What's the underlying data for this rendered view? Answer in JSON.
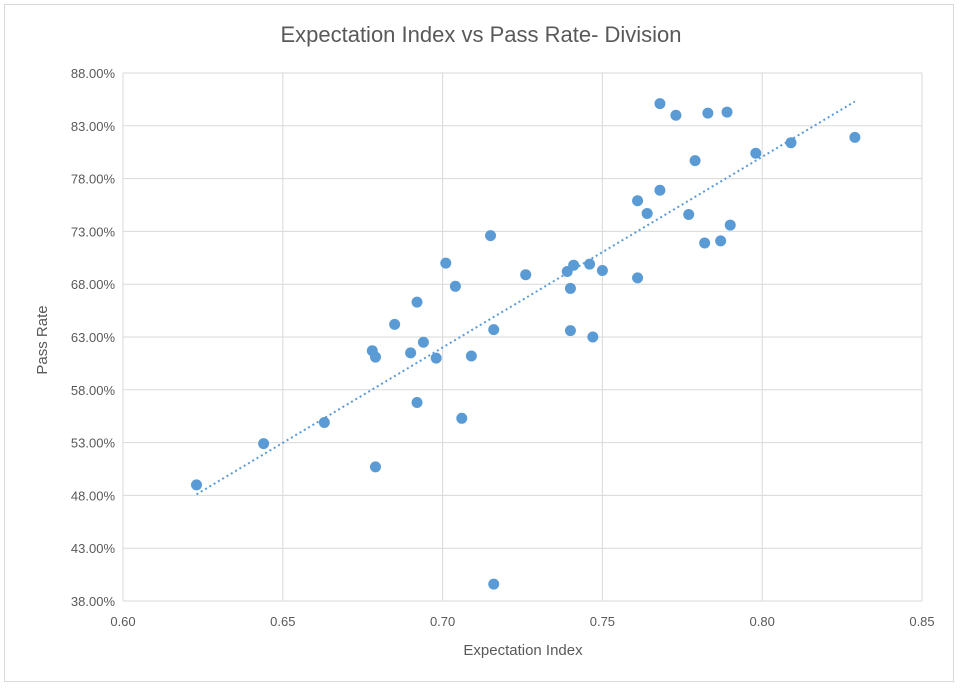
{
  "chart_data": {
    "type": "scatter",
    "title": "Expectation Index vs Pass Rate- Division",
    "xlabel": "Expectation Index",
    "ylabel": "Pass Rate",
    "xlim": [
      0.6,
      0.85
    ],
    "ylim": [
      38,
      88
    ],
    "x_ticks": [
      0.6,
      0.65,
      0.7,
      0.75,
      0.8,
      0.85
    ],
    "x_tick_labels": [
      "0.60",
      "0.65",
      "0.70",
      "0.75",
      "0.80",
      "0.85"
    ],
    "y_ticks": [
      38,
      43,
      48,
      53,
      58,
      63,
      68,
      73,
      78,
      83,
      88
    ],
    "y_tick_labels": [
      "38.00%",
      "43.00%",
      "48.00%",
      "53.00%",
      "58.00%",
      "63.00%",
      "68.00%",
      "73.00%",
      "78.00%",
      "83.00%",
      "88.00%"
    ],
    "grid": true,
    "point_color": "#5b9bd5",
    "trendline": {
      "type": "linear",
      "x": [
        0.623,
        0.829
      ],
      "y": [
        48.1,
        85.3
      ],
      "style": "dotted",
      "color": "#5b9bd5"
    },
    "series": [
      {
        "name": "Division",
        "points": [
          [
            0.623,
            49.0
          ],
          [
            0.644,
            52.9
          ],
          [
            0.663,
            54.9
          ],
          [
            0.678,
            61.7
          ],
          [
            0.679,
            61.1
          ],
          [
            0.679,
            50.7
          ],
          [
            0.685,
            64.2
          ],
          [
            0.69,
            61.5
          ],
          [
            0.692,
            66.3
          ],
          [
            0.692,
            56.8
          ],
          [
            0.694,
            62.5
          ],
          [
            0.698,
            61.0
          ],
          [
            0.701,
            70.0
          ],
          [
            0.704,
            67.8
          ],
          [
            0.706,
            55.3
          ],
          [
            0.709,
            61.2
          ],
          [
            0.715,
            72.6
          ],
          [
            0.716,
            63.7
          ],
          [
            0.716,
            39.6
          ],
          [
            0.726,
            68.9
          ],
          [
            0.739,
            69.2
          ],
          [
            0.74,
            63.6
          ],
          [
            0.74,
            67.6
          ],
          [
            0.741,
            69.8
          ],
          [
            0.746,
            69.9
          ],
          [
            0.747,
            63.0
          ],
          [
            0.75,
            69.3
          ],
          [
            0.761,
            75.9
          ],
          [
            0.761,
            68.6
          ],
          [
            0.764,
            74.7
          ],
          [
            0.768,
            76.9
          ],
          [
            0.768,
            85.1
          ],
          [
            0.773,
            84.0
          ],
          [
            0.777,
            74.6
          ],
          [
            0.779,
            79.7
          ],
          [
            0.782,
            71.9
          ],
          [
            0.783,
            84.2
          ],
          [
            0.787,
            72.1
          ],
          [
            0.789,
            84.3
          ],
          [
            0.79,
            73.6
          ],
          [
            0.798,
            80.4
          ],
          [
            0.809,
            81.4
          ],
          [
            0.829,
            81.9
          ]
        ]
      }
    ]
  }
}
